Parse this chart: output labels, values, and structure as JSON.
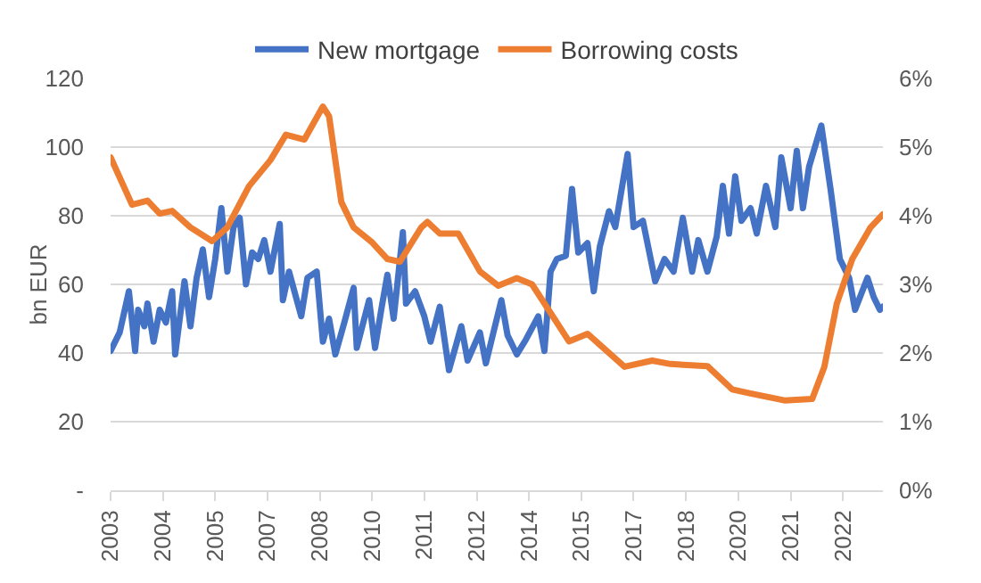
{
  "chart_data": {
    "type": "line",
    "ylabel": "bn EUR",
    "legend": "top",
    "grid": "y",
    "line_style": "solid",
    "marker": "none",
    "xlim": [
      "2003-01",
      "2023-12"
    ],
    "xticks": [
      {
        "value": "2003-01",
        "label": "2003"
      },
      {
        "value": "2004-06",
        "label": "2004"
      },
      {
        "value": "2005-11",
        "label": "2005"
      },
      {
        "value": "2007-04",
        "label": "2007"
      },
      {
        "value": "2008-09",
        "label": "2008"
      },
      {
        "value": "2010-02",
        "label": "2010"
      },
      {
        "value": "2011-07",
        "label": "2011"
      },
      {
        "value": "2012-12",
        "label": "2012"
      },
      {
        "value": "2014-05",
        "label": "2014"
      },
      {
        "value": "2015-10",
        "label": "2015"
      },
      {
        "value": "2017-03",
        "label": "2017"
      },
      {
        "value": "2018-08",
        "label": "2018"
      },
      {
        "value": "2020-01",
        "label": "2020"
      },
      {
        "value": "2021-06",
        "label": "2021"
      },
      {
        "value": "2022-11",
        "label": "2022"
      }
    ],
    "ylim": [
      0,
      120
    ],
    "yticks": [
      {
        "value": 0,
        "label": "-"
      },
      20,
      40,
      60,
      80,
      100,
      120
    ],
    "y2lim": [
      0,
      6
    ],
    "y2ticks": [
      {
        "value": 0,
        "label": "0%"
      },
      {
        "value": 1,
        "label": "1%"
      },
      {
        "value": 2,
        "label": "2%"
      },
      {
        "value": 3,
        "label": "3%"
      },
      {
        "value": 4,
        "label": "4%"
      },
      {
        "value": 5,
        "label": "5%"
      },
      {
        "value": 6,
        "label": "6%"
      }
    ],
    "series": [
      {
        "name": "New mortgage",
        "color": "#4472c4",
        "x": [
          "2003-01",
          "2003-04",
          "2003-07",
          "2003-09",
          "2003-10",
          "2003-12",
          "2004-01",
          "2004-03",
          "2004-05",
          "2004-07",
          "2004-09",
          "2004-10",
          "2005-01",
          "2005-03",
          "2005-05",
          "2005-07",
          "2005-09",
          "2005-11",
          "2006-01",
          "2006-03",
          "2006-05",
          "2006-07",
          "2006-09",
          "2006-11",
          "2007-01",
          "2007-03",
          "2007-05",
          "2007-08",
          "2007-09",
          "2007-11",
          "2008-03",
          "2008-05",
          "2008-08",
          "2008-10",
          "2008-12",
          "2009-02",
          "2009-05",
          "2009-08",
          "2009-09",
          "2010-01",
          "2010-03",
          "2010-05",
          "2010-07",
          "2010-09",
          "2010-12",
          "2011-01",
          "2011-04",
          "2011-07",
          "2011-09",
          "2011-12",
          "2012-03",
          "2012-07",
          "2012-09",
          "2013-01",
          "2013-03",
          "2013-08",
          "2013-10",
          "2014-01",
          "2014-04",
          "2014-08",
          "2014-10",
          "2014-12",
          "2015-02",
          "2015-05",
          "2015-07",
          "2015-09",
          "2015-12",
          "2016-02",
          "2016-04",
          "2016-07",
          "2016-09",
          "2017-01",
          "2017-03",
          "2017-06",
          "2017-10",
          "2018-01",
          "2018-04",
          "2018-07",
          "2018-10",
          "2018-12",
          "2019-03",
          "2019-06",
          "2019-08",
          "2019-10",
          "2019-12",
          "2020-02",
          "2020-05",
          "2020-07",
          "2020-10",
          "2021-01",
          "2021-03",
          "2021-06",
          "2021-08",
          "2021-10",
          "2021-12",
          "2022-04",
          "2022-07",
          "2022-10",
          "2023-01",
          "2023-03",
          "2023-07",
          "2023-09",
          "2023-11",
          "2023-12"
        ],
        "values": [
          40.6,
          46,
          58,
          40.6,
          52.6,
          47.8,
          54.4,
          43.3,
          52.6,
          48.9,
          58,
          39.6,
          60.9,
          47.8,
          61.9,
          70.2,
          56.3,
          67.4,
          82.2,
          63.7,
          76.7,
          79.4,
          60,
          69.3,
          67.4,
          72.9,
          63.7,
          77.6,
          55.4,
          63.7,
          50.7,
          61.9,
          63.7,
          43.3,
          50,
          39.6,
          48.9,
          59,
          41.5,
          55.4,
          41.5,
          52.6,
          62.8,
          50,
          75.2,
          54.4,
          58,
          50.7,
          43.3,
          53.5,
          35,
          47.8,
          37.8,
          46,
          37,
          55.4,
          45.2,
          39.6,
          43.9,
          50.7,
          40.6,
          63.7,
          67.4,
          68.3,
          87.8,
          69.3,
          72,
          58,
          71,
          81.3,
          76.7,
          98,
          76.7,
          78.5,
          60.9,
          67.4,
          63.7,
          79.4,
          63.7,
          72.9,
          63.7,
          73.9,
          88.7,
          74.8,
          91.5,
          78.5,
          82.2,
          74.8,
          88.7,
          76.7,
          97,
          82.2,
          98.9,
          82.2,
          94.3,
          106.3,
          87.8,
          67.4,
          61.9,
          52.6,
          61.9,
          56.3,
          52.6,
          53.5
        ]
      },
      {
        "name": "Borrowing costs",
        "color": "#ed7d31",
        "axis": "y2",
        "x": [
          "2003-01",
          "2003-08",
          "2004-01",
          "2004-05",
          "2004-09",
          "2005-03",
          "2005-10",
          "2006-03",
          "2006-10",
          "2007-05",
          "2007-10",
          "2008-04",
          "2008-10",
          "2008-12",
          "2009-04",
          "2009-08",
          "2010-02",
          "2010-07",
          "2010-11",
          "2011-06",
          "2011-08",
          "2011-12",
          "2012-06",
          "2013-01",
          "2013-07",
          "2014-01",
          "2014-06",
          "2015-06",
          "2015-12",
          "2016-12",
          "2017-09",
          "2018-03",
          "2019-03",
          "2019-11",
          "2020-05",
          "2021-04",
          "2022-01",
          "2022-05",
          "2022-09",
          "2023-02",
          "2023-08",
          "2023-12"
        ],
        "values": [
          4.85,
          4.16,
          4.22,
          4.03,
          4.07,
          3.83,
          3.63,
          3.83,
          4.43,
          4.81,
          5.18,
          5.11,
          5.59,
          5.45,
          4.2,
          3.83,
          3.61,
          3.37,
          3.33,
          3.83,
          3.91,
          3.74,
          3.74,
          3.19,
          2.98,
          3.09,
          3.0,
          2.17,
          2.28,
          1.8,
          1.89,
          1.84,
          1.81,
          1.47,
          1.41,
          1.31,
          1.33,
          1.8,
          2.72,
          3.37,
          3.83,
          4.02
        ]
      }
    ]
  }
}
